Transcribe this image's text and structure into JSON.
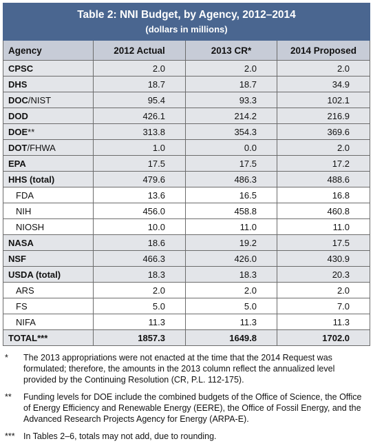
{
  "table": {
    "title": "Table 2: NNI Budget, by Agency, 2012–2014",
    "subtitle": "(dollars in millions)",
    "headers": [
      "Agency",
      "2012 Actual",
      "2013 CR*",
      "2014 Proposed"
    ],
    "rows": [
      {
        "agency_bold": "CPSC",
        "agency_rest": "",
        "values": [
          "2.0",
          "2.0",
          "2.0"
        ],
        "type": "agency"
      },
      {
        "agency_bold": "DHS",
        "agency_rest": "",
        "values": [
          "18.7",
          "18.7",
          "34.9"
        ],
        "type": "agency"
      },
      {
        "agency_bold": "DOC",
        "agency_rest": "/NIST",
        "values": [
          "95.4",
          "93.3",
          "102.1"
        ],
        "type": "agency"
      },
      {
        "agency_bold": "DOD",
        "agency_rest": "",
        "values": [
          "426.1",
          "214.2",
          "216.9"
        ],
        "type": "agency"
      },
      {
        "agency_bold": "DOE",
        "agency_rest": "**",
        "values": [
          "313.8",
          "354.3",
          "369.6"
        ],
        "type": "agency"
      },
      {
        "agency_bold": "DOT",
        "agency_rest": "/FHWA",
        "values": [
          "1.0",
          "0.0",
          "2.0"
        ],
        "type": "agency"
      },
      {
        "agency_bold": "EPA",
        "agency_rest": "",
        "values": [
          "17.5",
          "17.5",
          "17.2"
        ],
        "type": "agency"
      },
      {
        "agency_bold": "HHS (total)",
        "agency_rest": "",
        "values": [
          "479.6",
          "486.3",
          "488.6"
        ],
        "type": "agency"
      },
      {
        "agency_bold": "",
        "agency_rest": "FDA",
        "values": [
          "13.6",
          "16.5",
          "16.8"
        ],
        "type": "sub"
      },
      {
        "agency_bold": "",
        "agency_rest": "NIH",
        "values": [
          "456.0",
          "458.8",
          "460.8"
        ],
        "type": "sub"
      },
      {
        "agency_bold": "",
        "agency_rest": "NIOSH",
        "values": [
          "10.0",
          "11.0",
          "11.0"
        ],
        "type": "sub"
      },
      {
        "agency_bold": "NASA",
        "agency_rest": "",
        "values": [
          "18.6",
          "19.2",
          "17.5"
        ],
        "type": "agency"
      },
      {
        "agency_bold": "NSF",
        "agency_rest": "",
        "values": [
          "466.3",
          "426.0",
          "430.9"
        ],
        "type": "agency"
      },
      {
        "agency_bold": "USDA (total)",
        "agency_rest": "",
        "values": [
          "18.3",
          "18.3",
          "20.3"
        ],
        "type": "agency"
      },
      {
        "agency_bold": "",
        "agency_rest": "ARS",
        "values": [
          "2.0",
          "2.0",
          "2.0"
        ],
        "type": "sub"
      },
      {
        "agency_bold": "",
        "agency_rest": "FS",
        "values": [
          "5.0",
          "5.0",
          "7.0"
        ],
        "type": "sub"
      },
      {
        "agency_bold": "",
        "agency_rest": "NIFA",
        "values": [
          "11.3",
          "11.3",
          "11.3"
        ],
        "type": "sub"
      },
      {
        "agency_bold": "TOTAL",
        "agency_rest": "***",
        "values": [
          "1857.3",
          "1649.8",
          "1702.0"
        ],
        "type": "total"
      }
    ]
  },
  "notes": [
    {
      "mark": "*",
      "text": "The 2013 appropriations were not enacted at the time that the 2014 Request was formulated; therefore, the amounts in the 2013 column reflect the annualized level provided by the Continuing Resolution (CR, P.L. 112-175)."
    },
    {
      "mark": "**",
      "text": "Funding levels for DOE include the combined budgets of the Office of Science, the Office of Energy Efficiency and Renewable Energy (EERE), the Office of Fossil Energy, and the Advanced Research Projects Agency for Energy (ARPA-E)."
    },
    {
      "mark": "***",
      "text": "In Tables 2–6, totals may not add, due to rounding."
    }
  ]
}
